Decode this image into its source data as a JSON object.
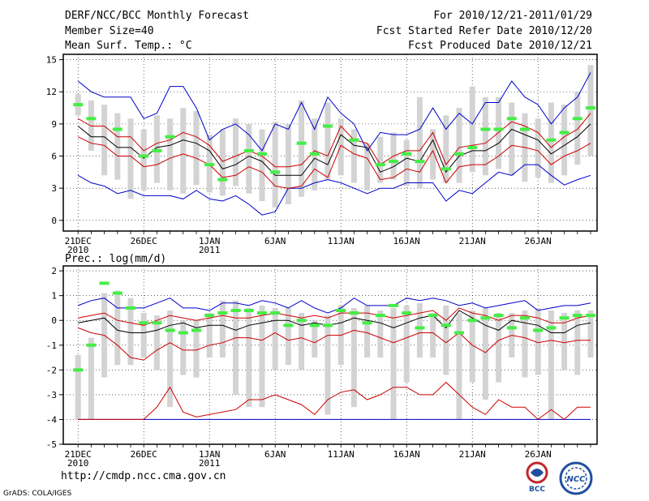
{
  "header": {
    "title": "DERF/NCC/BCC Monthly Forecast",
    "member_size": "Member Size=40",
    "variable": "Mean Surf. Temp.: °C",
    "period": "For 2010/12/21-2011/01/29",
    "start_date": "Fcst Started Refer Date 2010/12/20",
    "produced_date": "Fcst Produced Date 2010/12/21"
  },
  "footer": {
    "url": "http://cmdp.ncc.cma.gov.cn",
    "grads": "GrADS: COLA/IGES",
    "logo_bcc": "BCC",
    "logo_ncc": "NCC"
  },
  "colors": {
    "box": "#d3d3d3",
    "median": "#000000",
    "quartile": "#cc0000",
    "extreme": "#0000cc",
    "observed": "#44ee44"
  },
  "chart_data": [
    {
      "type": "box",
      "title": "Mean Surf. Temp.: °C",
      "ylim": [
        -1,
        15.5
      ],
      "yticks": [
        0,
        3,
        6,
        9,
        12,
        15
      ],
      "xlim": [
        0,
        40
      ],
      "xtick_labels": [
        {
          "x": 1,
          "label": "21DEC",
          "sub": "2010"
        },
        {
          "x": 6,
          "label": "26DEC",
          "sub": ""
        },
        {
          "x": 11,
          "label": "1JAN",
          "sub": "2011"
        },
        {
          "x": 16,
          "label": "6JAN",
          "sub": ""
        },
        {
          "x": 21,
          "label": "11JAN",
          "sub": ""
        },
        {
          "x": 26,
          "label": "16JAN",
          "sub": ""
        },
        {
          "x": 31,
          "label": "21JAN",
          "sub": ""
        },
        {
          "x": 36,
          "label": "26JAN",
          "sub": ""
        }
      ],
      "box_low": [
        9.8,
        6.5,
        4.2,
        3.8,
        2.0,
        2.8,
        3.5,
        2.8,
        2.5,
        3.3,
        2.6,
        2.3,
        3.2,
        2.5,
        1.8,
        1.2,
        1.5,
        2.2,
        2.8,
        3.8,
        4.2,
        3.5,
        2.8,
        3.5,
        3.8,
        3.2,
        3.0,
        3.8,
        3.5,
        3.5,
        4.5,
        4.2,
        4.8,
        4.2,
        3.6,
        4.0,
        3.5,
        4.2,
        5.2,
        6.0
      ],
      "box_high": [
        11.8,
        11.2,
        10.8,
        10.0,
        9.5,
        8.5,
        9.8,
        9.5,
        10.5,
        10.2,
        8.0,
        8.5,
        9.5,
        9.0,
        8.5,
        9.2,
        9.0,
        11.2,
        9.5,
        11.0,
        9.5,
        8.5,
        7.2,
        7.8,
        8.2,
        7.5,
        11.5,
        8.5,
        9.8,
        10.5,
        12.5,
        11.5,
        11.5,
        11.0,
        10.0,
        9.5,
        11.0,
        10.8,
        12.0,
        14.5
      ],
      "median": [
        8.8,
        7.8,
        7.8,
        6.8,
        6.8,
        5.8,
        6.8,
        7.0,
        7.5,
        7.2,
        6.5,
        4.8,
        5.2,
        6.0,
        5.5,
        4.2,
        4.2,
        4.2,
        5.8,
        5.2,
        8.0,
        7.0,
        6.8,
        4.5,
        5.0,
        5.8,
        5.5,
        7.5,
        4.5,
        6.0,
        6.5,
        6.5,
        7.2,
        8.5,
        8.0,
        7.5,
        6.2,
        7.0,
        7.8,
        9.0
      ],
      "q_upper": [
        9.5,
        8.8,
        8.8,
        7.8,
        7.8,
        6.5,
        7.2,
        7.5,
        8.2,
        7.8,
        7.0,
        5.5,
        6.0,
        6.5,
        6.0,
        5.0,
        5.0,
        5.2,
        6.5,
        6.0,
        8.8,
        7.5,
        7.2,
        5.2,
        6.0,
        6.5,
        6.5,
        8.2,
        5.2,
        6.8,
        7.0,
        7.2,
        8.2,
        9.2,
        8.8,
        8.2,
        6.8,
        7.8,
        8.5,
        10.0
      ],
      "q_lower": [
        7.8,
        7.2,
        7.0,
        6.0,
        6.0,
        5.0,
        5.2,
        5.8,
        6.2,
        5.8,
        5.2,
        4.0,
        4.2,
        5.0,
        4.5,
        3.2,
        3.0,
        3.2,
        4.8,
        4.0,
        7.0,
        6.2,
        5.8,
        3.8,
        4.0,
        4.8,
        4.5,
        6.5,
        3.5,
        5.0,
        5.2,
        5.2,
        6.0,
        7.0,
        6.8,
        6.5,
        5.2,
        6.0,
        6.5,
        7.2
      ],
      "max": [
        13.0,
        12.0,
        11.5,
        11.5,
        11.5,
        9.5,
        10.0,
        12.5,
        12.5,
        10.5,
        7.5,
        8.5,
        9.0,
        8.0,
        6.5,
        9.0,
        8.5,
        11.0,
        8.5,
        11.5,
        10.0,
        9.0,
        6.5,
        8.2,
        8.0,
        8.0,
        8.5,
        10.5,
        8.5,
        10.0,
        9.0,
        11.0,
        11.0,
        13.0,
        11.5,
        10.8,
        9.0,
        10.5,
        11.5,
        13.8
      ],
      "min": [
        4.2,
        3.5,
        3.2,
        2.5,
        2.8,
        2.3,
        2.3,
        2.3,
        2.0,
        2.8,
        2.0,
        1.8,
        2.3,
        1.5,
        0.5,
        0.8,
        3.0,
        3.0,
        3.5,
        3.8,
        3.5,
        3.0,
        2.5,
        3.0,
        3.0,
        3.5,
        3.5,
        3.5,
        1.8,
        2.8,
        2.5,
        3.5,
        4.5,
        4.2,
        5.2,
        5.2,
        4.2,
        3.3,
        3.8,
        4.2
      ],
      "observed": [
        10.8,
        9.5,
        null,
        8.5,
        null,
        6.0,
        6.5,
        7.8,
        null,
        null,
        5.2,
        3.8,
        null,
        6.5,
        6.2,
        4.5,
        null,
        7.2,
        6.2,
        8.8,
        null,
        7.5,
        null,
        5.2,
        5.5,
        6.2,
        5.5,
        null,
        4.8,
        6.2,
        6.8,
        8.5,
        8.5,
        9.5,
        8.5,
        null,
        7.5,
        8.2,
        9.5,
        10.5
      ]
    },
    {
      "type": "box",
      "title": "Prec.: log(mm/d)",
      "ylim": [
        -5,
        2.2
      ],
      "yticks": [
        -5,
        -4,
        -3,
        -2,
        -1,
        0,
        1,
        2
      ],
      "xlim": [
        0,
        40
      ],
      "xtick_labels": [
        {
          "x": 1,
          "label": "21DEC",
          "sub": "2010"
        },
        {
          "x": 6,
          "label": "26DEC",
          "sub": ""
        },
        {
          "x": 11,
          "label": "1JAN",
          "sub": "2011"
        },
        {
          "x": 16,
          "label": "6JAN",
          "sub": ""
        },
        {
          "x": 21,
          "label": "11JAN",
          "sub": ""
        },
        {
          "x": 26,
          "label": "16JAN",
          "sub": ""
        },
        {
          "x": 31,
          "label": "21JAN",
          "sub": ""
        },
        {
          "x": 36,
          "label": "26JAN",
          "sub": ""
        }
      ],
      "box_low": [
        -4.0,
        -4.0,
        -2.3,
        -1.8,
        -1.8,
        -1.5,
        -2.0,
        -3.5,
        -2.2,
        -2.3,
        -1.5,
        -1.5,
        -3.0,
        -3.5,
        -3.5,
        -2.0,
        -1.8,
        -2.0,
        -1.5,
        -3.8,
        -1.8,
        -3.5,
        -1.5,
        -1.5,
        -4.0,
        -2.5,
        -1.5,
        -1.5,
        -2.2,
        -4.0,
        -2.5,
        -3.2,
        -2.5,
        -1.5,
        -2.3,
        -2.2,
        -4.0,
        -2.0,
        -2.2,
        -1.5
      ],
      "box_high": [
        -1.4,
        -0.7,
        1.1,
        1.2,
        0.9,
        0.3,
        0.2,
        0.4,
        0.0,
        0.0,
        0.3,
        0.8,
        0.8,
        0.5,
        0.6,
        0.5,
        0.5,
        0.3,
        0.0,
        0.2,
        0.6,
        0.5,
        0.6,
        0.4,
        0.5,
        0.6,
        0.7,
        0.3,
        0.6,
        0.3,
        0.4,
        0.5,
        0.3,
        0.3,
        0.4,
        0.5,
        0.4,
        0.3,
        0.4,
        0.4
      ],
      "median": [
        -0.1,
        0.0,
        0.1,
        -0.4,
        -0.5,
        -0.5,
        -0.4,
        -0.2,
        -0.1,
        -0.3,
        -0.2,
        -0.2,
        -0.4,
        -0.2,
        -0.1,
        0.0,
        0.0,
        -0.2,
        -0.1,
        -0.2,
        -0.1,
        0.1,
        0.0,
        -0.1,
        -0.3,
        -0.1,
        0.1,
        0.2,
        -0.3,
        0.4,
        0.1,
        -0.2,
        -0.4,
        0.0,
        -0.1,
        -0.2,
        -0.5,
        -0.5,
        -0.2,
        -0.1
      ],
      "q_upper": [
        0.1,
        0.2,
        0.3,
        0.0,
        -0.1,
        -0.2,
        0.0,
        0.2,
        0.1,
        0.0,
        0.1,
        0.2,
        0.1,
        0.1,
        0.2,
        0.3,
        0.2,
        0.1,
        0.2,
        0.1,
        0.3,
        0.3,
        0.3,
        0.2,
        0.1,
        0.2,
        0.3,
        0.4,
        0.0,
        0.5,
        0.3,
        0.2,
        0.0,
        0.2,
        0.2,
        0.1,
        -0.1,
        -0.1,
        0.1,
        0.2
      ],
      "q_lower": [
        -0.3,
        -0.5,
        -0.6,
        -1.0,
        -1.5,
        -1.6,
        -1.2,
        -0.9,
        -1.2,
        -1.2,
        -1.0,
        -0.9,
        -0.7,
        -0.7,
        -0.8,
        -0.5,
        -0.8,
        -0.7,
        -0.9,
        -0.6,
        -0.6,
        -0.4,
        -0.5,
        -0.7,
        -0.9,
        -0.7,
        -0.5,
        -0.5,
        -0.9,
        -0.5,
        -1.0,
        -1.3,
        -0.8,
        -0.6,
        -0.7,
        -0.9,
        -0.8,
        -0.9,
        -0.8,
        -0.8
      ],
      "max": [
        0.6,
        0.8,
        0.9,
        0.5,
        0.5,
        0.5,
        0.7,
        0.9,
        0.5,
        0.5,
        0.4,
        0.7,
        0.7,
        0.6,
        0.8,
        0.7,
        0.5,
        0.8,
        0.5,
        0.3,
        0.5,
        0.9,
        0.6,
        0.6,
        0.6,
        0.9,
        0.8,
        0.9,
        0.8,
        0.6,
        0.7,
        0.5,
        0.6,
        0.7,
        0.8,
        0.4,
        0.5,
        0.6,
        0.6,
        0.7
      ],
      "min": [
        -4.0,
        -4.0,
        -4.0,
        -4.0,
        -4.0,
        -4.0,
        -4.0,
        -4.0,
        -4.0,
        -4.0,
        -4.0,
        -4.0,
        -4.0,
        -4.0,
        -4.0,
        -4.0,
        -4.0,
        -4.0,
        -4.0,
        -4.0,
        -4.0,
        -4.0,
        -4.0,
        -4.0,
        -4.0,
        -4.0,
        -4.0,
        -4.0,
        -4.0,
        -4.0,
        -4.0,
        -4.0,
        -4.0,
        -4.0,
        -4.0,
        -4.0,
        -4.0,
        -4.0,
        -4.0,
        -4.0
      ],
      "min_quartile": [
        -4.0,
        -4.0,
        -4.0,
        -4.0,
        -4.0,
        -4.0,
        -3.5,
        -2.7,
        -3.7,
        -3.9,
        -3.8,
        -3.7,
        -3.6,
        -3.2,
        -3.2,
        -3.0,
        -3.2,
        -3.4,
        -3.8,
        -3.2,
        -2.9,
        -2.8,
        -3.2,
        -3.0,
        -2.7,
        -2.7,
        -3.0,
        -3.0,
        -2.5,
        -3.0,
        -3.5,
        -3.8,
        -3.2,
        -3.5,
        -3.5,
        -4.0,
        -3.6,
        -4.0,
        -3.5,
        -3.5
      ],
      "observed": [
        -2.0,
        -1.0,
        1.5,
        1.1,
        0.5,
        -0.1,
        -0.1,
        -0.4,
        -0.5,
        -0.4,
        0.2,
        0.3,
        0.4,
        0.4,
        0.3,
        0.3,
        -0.2,
        0.0,
        -0.2,
        -0.2,
        0.4,
        0.3,
        -0.1,
        0.2,
        0.6,
        0.3,
        -0.3,
        0.2,
        -0.2,
        -0.5,
        0.0,
        0.1,
        0.2,
        -0.3,
        0.1,
        -0.4,
        -0.3,
        0.1,
        0.2,
        0.2
      ]
    }
  ]
}
